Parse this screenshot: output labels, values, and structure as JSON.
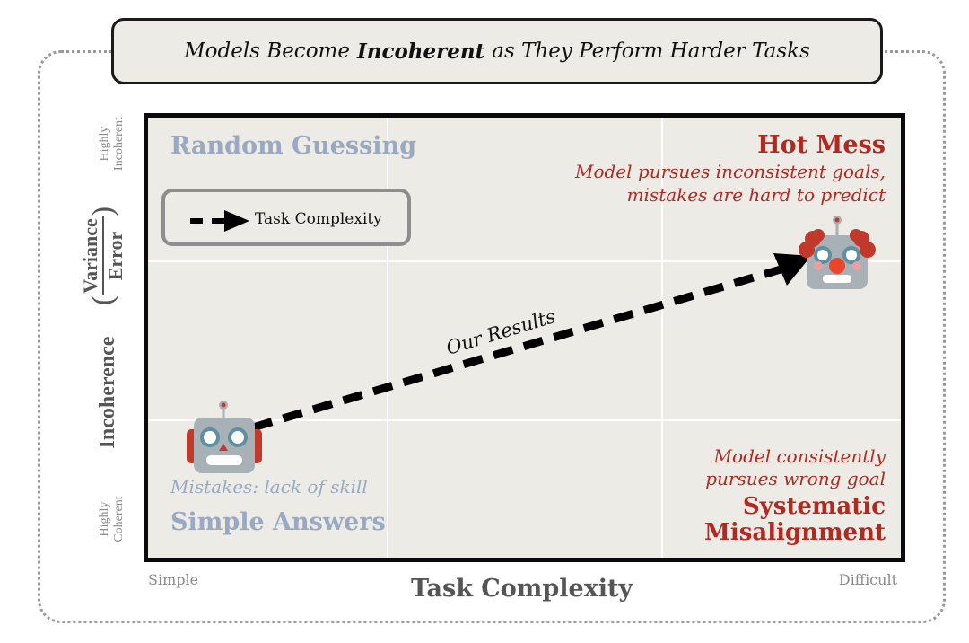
{
  "title": {
    "before": "Models Become",
    "emphasis": "Incoherent",
    "after": "as They Perform Harder Tasks"
  },
  "quadrants": {
    "top_left": {
      "title": "Random Guessing"
    },
    "top_right": {
      "title": "Hot Mess",
      "description_line1": "Model pursues inconsistent goals,",
      "description_line2": "mistakes are hard to predict"
    },
    "bottom_left": {
      "title": "Simple Answers",
      "description": "Mistakes: lack of skill"
    },
    "bottom_right": {
      "title_line1": "Systematic",
      "title_line2": "Misalignment",
      "description_line1": "Model consistently",
      "description_line2": "pursues wrong goal"
    }
  },
  "legend": {
    "label": "Task Complexity"
  },
  "arrow_label": "Our Results",
  "x_axis": {
    "label": "Task Complexity",
    "min_label": "Simple",
    "max_label": "Difficult"
  },
  "y_axis": {
    "label": "Incoherence",
    "numerator": "Variance",
    "denominator": "Error",
    "min_label_1": "Highly",
    "min_label_2": "Coherent",
    "max_label_1": "Highly",
    "max_label_2": "Incoherent"
  },
  "colors": {
    "red": "#b02a22",
    "blue": "#9aa9c3",
    "background": "#ecebe6"
  }
}
